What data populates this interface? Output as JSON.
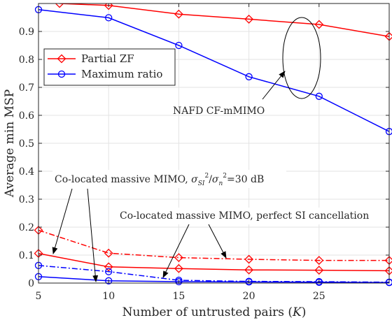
{
  "chart_data": {
    "type": "line",
    "xlabel_prefix": "Number of untrusted pairs (",
    "xlabel_var": "K",
    "xlabel_suffix": ")",
    "ylabel": "Average min MSP",
    "xlim": [
      5,
      30
    ],
    "ylim": [
      0,
      1
    ],
    "x_ticks": [
      5,
      10,
      15,
      20,
      25
    ],
    "y_ticks": [
      0,
      0.1,
      0.2,
      0.3,
      0.4,
      0.5,
      0.6,
      0.7,
      0.8,
      0.9
    ],
    "y_tick_labels": [
      "0",
      "0.1",
      "0.2",
      "0.3",
      "0.4",
      "0.5",
      "0.6",
      "0.7",
      "0.8",
      "0.9"
    ],
    "grid": true,
    "legend_position": "upper-left",
    "x": [
      5,
      10,
      15,
      20,
      25,
      30
    ],
    "series": [
      {
        "name": "Partial ZF",
        "color": "#ff0000",
        "marker": "diamond",
        "dash": "solid",
        "legend": true,
        "points": [
          [
            6.5,
            1.0
          ],
          [
            10,
            0.993
          ],
          [
            15,
            0.962
          ],
          [
            20,
            0.944
          ],
          [
            25,
            0.925
          ],
          [
            30,
            0.882
          ]
        ]
      },
      {
        "name": "Maximum ratio",
        "color": "#0000ff",
        "marker": "circle",
        "dash": "solid",
        "legend": true,
        "points": [
          [
            5,
            0.978
          ],
          [
            10,
            0.949
          ],
          [
            15,
            0.85
          ],
          [
            20,
            0.738
          ],
          [
            25,
            0.668
          ],
          [
            30,
            0.542
          ]
        ]
      },
      {
        "name": "",
        "color": "#ff0000",
        "marker": "diamond",
        "dash": "dashdot",
        "legend": false,
        "points": [
          [
            5,
            0.189
          ],
          [
            10,
            0.107
          ],
          [
            15,
            0.091
          ],
          [
            20,
            0.085
          ],
          [
            25,
            0.081
          ],
          [
            30,
            0.081
          ]
        ]
      },
      {
        "name": "",
        "color": "#ff0000",
        "marker": "diamond",
        "dash": "solid",
        "legend": false,
        "points": [
          [
            5,
            0.106
          ],
          [
            10,
            0.058
          ],
          [
            15,
            0.052
          ],
          [
            20,
            0.047
          ],
          [
            25,
            0.046
          ],
          [
            30,
            0.044
          ]
        ]
      },
      {
        "name": "",
        "color": "#0000ff",
        "marker": "circle",
        "dash": "dashdot",
        "legend": false,
        "points": [
          [
            5,
            0.063
          ],
          [
            10,
            0.041
          ],
          [
            15,
            0.01
          ],
          [
            20,
            0.006
          ],
          [
            25,
            0.005
          ],
          [
            30,
            0.003
          ]
        ]
      },
      {
        "name": "",
        "color": "#0000ff",
        "marker": "circle",
        "dash": "solid",
        "legend": false,
        "points": [
          [
            5,
            0.023
          ],
          [
            10,
            0.008
          ],
          [
            15,
            0.005
          ],
          [
            20,
            0.004
          ],
          [
            25,
            0.003
          ],
          [
            30,
            0.002
          ]
        ]
      }
    ],
    "annotations": {
      "nafd": "NAFD CF-mMIMO",
      "colocated_si_prefix": "Co-located massive MIMO, ",
      "colocated_si_suffix": "=30 dB",
      "colocated_perfect": "Co-located massive MIMO, perfect SI cancellation"
    }
  }
}
